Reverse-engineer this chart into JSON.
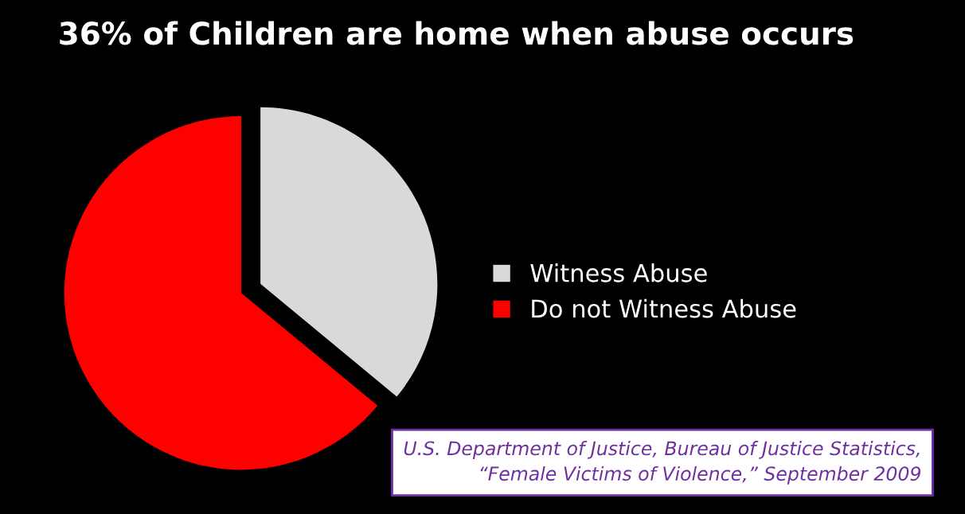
{
  "chart_data": {
    "type": "pie",
    "title": "36% of Children are home when abuse occurs",
    "categories": [
      "Witness Abuse",
      "Do not Witness Abuse"
    ],
    "values": [
      36,
      64
    ],
    "colors": [
      "#d9d9d9",
      "#ff0000"
    ],
    "legend": "right",
    "annotations": [
      "U.S. Department of Justice, Bureau of Justice Statistics,\n“Female Victims of Violence,” September 2009"
    ]
  }
}
